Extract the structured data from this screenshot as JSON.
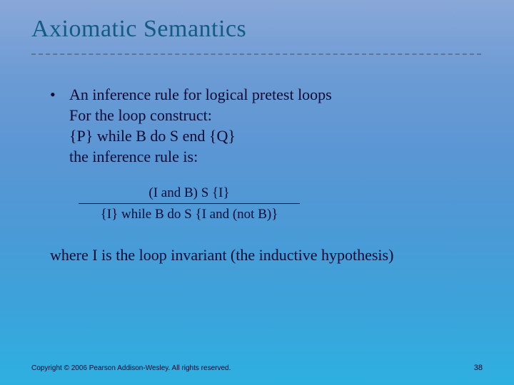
{
  "title": "Axiomatic Semantics",
  "bullet": {
    "line1": "An inference rule for logical pretest loops",
    "line2": "For the loop construct:",
    "line3": "{P} while B do S end {Q}",
    "line4": " the inference rule is:"
  },
  "inference_rule": {
    "numerator": "(I and B) S {I}",
    "denominator": "{I} while B do S {I and (not B)}"
  },
  "closing": "where I is the loop invariant (the inductive hypothesis)",
  "footer": "Copyright © 2006 Pearson Addison-Wesley. All rights reserved.",
  "page_number": "38",
  "colors": {
    "title_color": "#115c80",
    "text_color": "#0a0a33",
    "bg_top": "#89a8d8",
    "bg_bottom": "#2db0e0",
    "rule_dash": "#5a7896"
  }
}
